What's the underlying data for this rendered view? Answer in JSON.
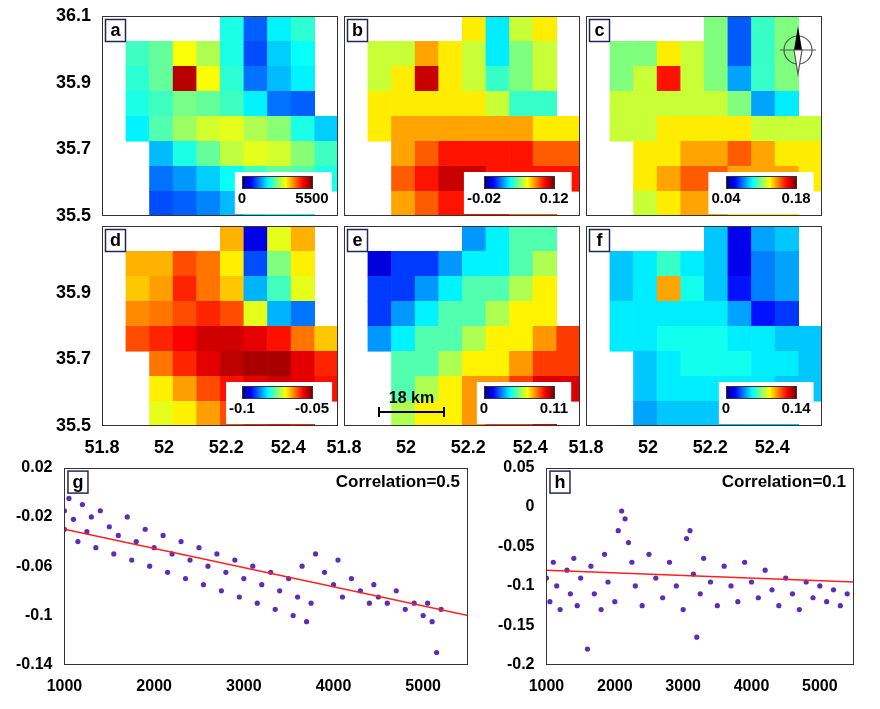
{
  "chart_data": [
    {
      "type": "heatmap",
      "panel": "a",
      "x": [
        51.838,
        51.914,
        51.99,
        52.066,
        52.142,
        52.218,
        52.294,
        52.37,
        52.446,
        52.522
      ],
      "y": [
        36.0625,
        35.9875,
        35.9125,
        35.8375,
        35.7625,
        35.6875,
        35.6125,
        35.5375
      ],
      "cells": [
        [
          null,
          null,
          null,
          null,
          null,
          2200,
          1200,
          2000,
          2300,
          null
        ],
        [
          null,
          2400,
          2600,
          3400,
          3000,
          2200,
          1100,
          1800,
          2100,
          null
        ],
        [
          null,
          2300,
          2600,
          5200,
          3400,
          2300,
          1300,
          1700,
          2000,
          null
        ],
        [
          null,
          2200,
          2400,
          2700,
          2600,
          2400,
          2000,
          1300,
          1200,
          null
        ],
        [
          null,
          2000,
          2500,
          2900,
          3200,
          3300,
          3000,
          2800,
          2200,
          1800
        ],
        [
          null,
          null,
          1700,
          2200,
          2600,
          3100,
          3300,
          3200,
          2800,
          2400
        ],
        [
          null,
          null,
          1300,
          1500,
          1800,
          2100,
          2400,
          2600,
          2500,
          2200
        ],
        [
          null,
          null,
          1100,
          1200,
          1400,
          1700,
          2000,
          2200,
          2100,
          null
        ]
      ],
      "xlim": [
        51.8,
        52.56
      ],
      "ylim": [
        35.5,
        36.1
      ],
      "yticks": [
        35.5,
        35.7,
        35.9,
        36.1
      ],
      "tick_labels": "y",
      "colorbar": {
        "range": [
          0,
          5500
        ],
        "ticks": [
          0,
          5500
        ]
      }
    },
    {
      "type": "heatmap",
      "panel": "b",
      "x": [
        51.838,
        51.914,
        51.99,
        52.066,
        52.142,
        52.218,
        52.294,
        52.37,
        52.446,
        52.522
      ],
      "y": [
        36.0625,
        35.9875,
        35.9125,
        35.8375,
        35.7625,
        35.6875,
        35.6125,
        35.5375
      ],
      "cells": [
        [
          null,
          null,
          null,
          null,
          null,
          0.07,
          0.03,
          0.06,
          0.07,
          null
        ],
        [
          null,
          0.06,
          0.06,
          0.08,
          0.07,
          0.06,
          0.03,
          0.05,
          0.06,
          null
        ],
        [
          null,
          0.06,
          0.07,
          0.11,
          0.07,
          0.06,
          0.04,
          0.05,
          0.06,
          null
        ],
        [
          null,
          0.07,
          0.07,
          0.07,
          0.07,
          0.07,
          0.06,
          0.04,
          0.04,
          null
        ],
        [
          null,
          0.07,
          0.08,
          0.08,
          0.08,
          0.08,
          0.08,
          0.08,
          0.07,
          0.07
        ],
        [
          null,
          null,
          0.08,
          0.09,
          0.1,
          0.1,
          0.1,
          0.1,
          0.09,
          0.09
        ],
        [
          null,
          null,
          0.09,
          0.1,
          0.11,
          0.11,
          0.1,
          0.1,
          0.1,
          0.1
        ],
        [
          null,
          null,
          0.08,
          0.09,
          0.1,
          0.1,
          0.1,
          0.09,
          0.09,
          null
        ]
      ],
      "xlim": [
        51.8,
        52.56
      ],
      "ylim": [
        35.5,
        36.1
      ],
      "tick_labels": false,
      "colorbar": {
        "range": [
          -0.02,
          0.12
        ],
        "ticks": [
          -0.02,
          0.12
        ]
      }
    },
    {
      "type": "heatmap",
      "panel": "c",
      "x": [
        51.838,
        51.914,
        51.99,
        52.066,
        52.142,
        52.218,
        52.294,
        52.37,
        52.446,
        52.522
      ],
      "y": [
        36.0625,
        35.9875,
        35.9125,
        35.8375,
        35.7625,
        35.6875,
        35.6125,
        35.5375
      ],
      "cells": [
        [
          null,
          null,
          null,
          null,
          null,
          0.11,
          0.07,
          0.1,
          0.11,
          null
        ],
        [
          null,
          0.11,
          0.11,
          0.13,
          0.12,
          0.11,
          0.07,
          0.1,
          0.11,
          null
        ],
        [
          null,
          0.11,
          0.12,
          0.16,
          0.12,
          0.11,
          0.08,
          0.1,
          0.11,
          null
        ],
        [
          null,
          0.12,
          0.12,
          0.12,
          0.12,
          0.12,
          0.11,
          0.08,
          0.09,
          null
        ],
        [
          null,
          0.12,
          0.12,
          0.13,
          0.13,
          0.13,
          0.13,
          0.12,
          0.12,
          0.12
        ],
        [
          null,
          null,
          0.13,
          0.13,
          0.14,
          0.14,
          0.15,
          0.14,
          0.13,
          0.13
        ],
        [
          null,
          null,
          0.13,
          0.14,
          0.15,
          0.15,
          0.14,
          0.14,
          0.14,
          0.13
        ],
        [
          null,
          null,
          0.12,
          0.13,
          0.14,
          0.14,
          0.13,
          0.13,
          0.13,
          null
        ]
      ],
      "xlim": [
        51.8,
        52.56
      ],
      "ylim": [
        35.5,
        36.1
      ],
      "tick_labels": false,
      "colorbar": {
        "range": [
          0.04,
          0.18
        ],
        "ticks": [
          0.04,
          0.18
        ]
      }
    },
    {
      "type": "heatmap",
      "panel": "d",
      "x": [
        51.838,
        51.914,
        51.99,
        52.066,
        52.142,
        52.218,
        52.294,
        52.37,
        52.446,
        52.522
      ],
      "y": [
        36.0625,
        35.9875,
        35.9125,
        35.8375,
        35.7625,
        35.6875,
        35.6125,
        35.5375
      ],
      "cells": [
        [
          null,
          null,
          null,
          null,
          null,
          -0.065,
          -0.095,
          -0.07,
          -0.065,
          null
        ],
        [
          null,
          -0.065,
          -0.065,
          -0.06,
          -0.062,
          -0.068,
          -0.09,
          -0.075,
          -0.068,
          null
        ],
        [
          null,
          -0.066,
          -0.064,
          -0.058,
          -0.062,
          -0.066,
          -0.085,
          -0.078,
          -0.07,
          null
        ],
        [
          null,
          -0.063,
          -0.062,
          -0.06,
          -0.058,
          -0.06,
          -0.07,
          -0.085,
          -0.088,
          null
        ],
        [
          null,
          -0.06,
          -0.058,
          -0.056,
          -0.054,
          -0.054,
          -0.055,
          -0.057,
          -0.062,
          -0.066
        ],
        [
          null,
          null,
          -0.062,
          -0.058,
          -0.055,
          -0.053,
          -0.052,
          -0.052,
          -0.055,
          -0.058
        ],
        [
          null,
          null,
          -0.068,
          -0.064,
          -0.06,
          -0.057,
          -0.055,
          -0.054,
          -0.055,
          -0.057
        ],
        [
          null,
          null,
          -0.07,
          -0.068,
          -0.064,
          -0.06,
          -0.058,
          -0.057,
          -0.058,
          null
        ]
      ],
      "xlim": [
        51.8,
        52.56
      ],
      "ylim": [
        35.5,
        36.1
      ],
      "xticks": [
        51.8,
        52,
        52.2,
        52.4
      ],
      "yticks": [
        35.5,
        35.7,
        35.9
      ],
      "tick_labels": true,
      "colorbar": {
        "range": [
          -0.1,
          -0.05
        ],
        "ticks": [
          -0.1,
          -0.05
        ]
      }
    },
    {
      "type": "heatmap",
      "panel": "e",
      "x": [
        51.838,
        51.914,
        51.99,
        52.066,
        52.142,
        52.218,
        52.294,
        52.37,
        52.446,
        52.522
      ],
      "y": [
        36.0625,
        35.9875,
        35.9125,
        35.8375,
        35.7625,
        35.6875,
        35.6125,
        35.5375
      ],
      "cells": [
        [
          null,
          null,
          null,
          null,
          null,
          0.03,
          0.04,
          0.05,
          0.05,
          null
        ],
        [
          null,
          0.01,
          0.02,
          0.02,
          0.03,
          0.04,
          0.04,
          0.05,
          0.06,
          null
        ],
        [
          null,
          0.02,
          0.02,
          0.03,
          0.04,
          0.05,
          0.05,
          0.06,
          0.07,
          null
        ],
        [
          null,
          0.02,
          0.03,
          0.04,
          0.05,
          0.05,
          0.06,
          0.07,
          0.07,
          null
        ],
        [
          null,
          0.03,
          0.04,
          0.05,
          0.05,
          0.06,
          0.07,
          0.07,
          0.08,
          0.09
        ],
        [
          null,
          null,
          0.05,
          0.05,
          0.06,
          0.07,
          0.07,
          0.08,
          0.09,
          0.09
        ],
        [
          null,
          null,
          0.05,
          0.06,
          0.07,
          0.08,
          0.08,
          0.09,
          0.1,
          0.1
        ],
        [
          null,
          null,
          0.06,
          0.07,
          0.07,
          0.08,
          0.09,
          0.09,
          0.1,
          null
        ]
      ],
      "xlim": [
        51.8,
        52.56
      ],
      "ylim": [
        35.5,
        36.1
      ],
      "xticks": [
        51.8,
        52,
        52.2,
        52.4
      ],
      "tick_labels": "x",
      "annotation": "18 km",
      "colorbar": {
        "range": [
          0,
          0.11
        ],
        "ticks": [
          0,
          0.11
        ]
      }
    },
    {
      "type": "heatmap",
      "panel": "f",
      "x": [
        51.838,
        51.914,
        51.99,
        52.066,
        52.142,
        52.218,
        52.294,
        52.37,
        52.446,
        52.522
      ],
      "y": [
        36.0625,
        35.9875,
        35.9125,
        35.8375,
        35.7625,
        35.6875,
        35.6125,
        35.5375
      ],
      "cells": [
        [
          null,
          null,
          null,
          null,
          null,
          0.045,
          0.015,
          0.04,
          0.045,
          null
        ],
        [
          null,
          0.045,
          0.05,
          0.06,
          0.05,
          0.045,
          0.015,
          0.035,
          0.04,
          null
        ],
        [
          null,
          0.045,
          0.05,
          0.1,
          0.055,
          0.045,
          0.02,
          0.035,
          0.04,
          null
        ],
        [
          null,
          0.05,
          0.05,
          0.05,
          0.05,
          0.05,
          0.04,
          0.02,
          0.025,
          null
        ],
        [
          null,
          0.05,
          0.05,
          0.055,
          0.055,
          0.055,
          0.05,
          0.05,
          0.045,
          0.045
        ],
        [
          null,
          null,
          0.045,
          0.05,
          0.055,
          0.055,
          0.055,
          0.05,
          0.05,
          0.045
        ],
        [
          null,
          null,
          0.045,
          0.05,
          0.05,
          0.05,
          0.05,
          0.05,
          0.045,
          0.045
        ],
        [
          null,
          null,
          0.04,
          0.045,
          0.045,
          0.045,
          0.045,
          0.045,
          0.045,
          null
        ]
      ],
      "xlim": [
        51.8,
        52.56
      ],
      "ylim": [
        35.5,
        36.1
      ],
      "xticks": [
        51.8,
        52,
        52.2,
        52.4
      ],
      "tick_labels": "x",
      "colorbar": {
        "range": [
          0,
          0.14
        ],
        "ticks": [
          0,
          0.14
        ]
      }
    },
    {
      "type": "scatter",
      "panel": "g",
      "annotation": "Correlation=0.5",
      "grid": false,
      "xlim": [
        1000,
        5500
      ],
      "ylim": [
        -0.14,
        0.02
      ],
      "xticks": [
        1000,
        2000,
        3000,
        4000,
        5000
      ],
      "yticks": [
        -0.14,
        -0.1,
        -0.06,
        -0.02,
        0.02
      ],
      "series": [
        {
          "type": "scatter",
          "color": "#5b2db8",
          "x": [
            1000,
            1000,
            1050,
            1100,
            1150,
            1200,
            1250,
            1300,
            1350,
            1400,
            1500,
            1550,
            1600,
            1700,
            1750,
            1800,
            1900,
            1950,
            2000,
            2100,
            2150,
            2200,
            2300,
            2350,
            2400,
            2500,
            2550,
            2600,
            2700,
            2750,
            2800,
            2900,
            2950,
            3000,
            3100,
            3150,
            3200,
            3300,
            3350,
            3400,
            3500,
            3550,
            3600,
            3650,
            3700,
            3750,
            3800,
            3900,
            4000,
            4050,
            4100,
            4200,
            4300,
            4400,
            4450,
            4500,
            4600,
            4700,
            4800,
            4900,
            5000,
            5050,
            5100,
            5150,
            5200
          ],
          "values": [
            -0.015,
            -0.03,
            -0.005,
            -0.022,
            -0.04,
            -0.01,
            -0.032,
            -0.02,
            -0.045,
            -0.015,
            -0.028,
            -0.05,
            -0.035,
            -0.02,
            -0.055,
            -0.04,
            -0.03,
            -0.06,
            -0.045,
            -0.035,
            -0.065,
            -0.05,
            -0.04,
            -0.07,
            -0.055,
            -0.045,
            -0.075,
            -0.06,
            -0.05,
            -0.08,
            -0.065,
            -0.055,
            -0.085,
            -0.07,
            -0.06,
            -0.09,
            -0.075,
            -0.065,
            -0.095,
            -0.08,
            -0.07,
            -0.1,
            -0.085,
            -0.06,
            -0.105,
            -0.09,
            -0.05,
            -0.065,
            -0.075,
            -0.055,
            -0.085,
            -0.07,
            -0.08,
            -0.09,
            -0.075,
            -0.085,
            -0.09,
            -0.08,
            -0.095,
            -0.09,
            -0.1,
            -0.09,
            -0.105,
            -0.13,
            -0.095
          ]
        },
        {
          "type": "line",
          "color": "#ff2020",
          "x": [
            1000,
            5500
          ],
          "values": [
            -0.03,
            -0.1
          ]
        }
      ]
    },
    {
      "type": "scatter",
      "panel": "h",
      "annotation": "Correlation=0.1",
      "grid": false,
      "xlim": [
        1000,
        5500
      ],
      "ylim": [
        -0.2,
        0.05
      ],
      "xticks": [
        1000,
        2000,
        3000,
        4000,
        5000
      ],
      "yticks": [
        -0.2,
        -0.15,
        -0.1,
        -0.05,
        0,
        0.05
      ],
      "series": [
        {
          "type": "scatter",
          "color": "#5b2db8",
          "x": [
            1000,
            1050,
            1100,
            1150,
            1200,
            1300,
            1350,
            1400,
            1450,
            1500,
            1600,
            1650,
            1700,
            1800,
            1850,
            1900,
            2000,
            2050,
            2100,
            2150,
            2200,
            2250,
            2300,
            2400,
            2500,
            2600,
            2700,
            2800,
            2900,
            3000,
            3050,
            3100,
            3150,
            3200,
            3250,
            3300,
            3400,
            3500,
            3600,
            3700,
            3800,
            3900,
            4000,
            4100,
            4200,
            4300,
            4400,
            4500,
            4600,
            4700,
            4800,
            4900,
            5000,
            5100,
            5200,
            5300,
            5400
          ],
          "values": [
            -0.09,
            -0.12,
            -0.07,
            -0.1,
            -0.13,
            -0.08,
            -0.11,
            -0.065,
            -0.125,
            -0.09,
            -0.18,
            -0.075,
            -0.11,
            -0.13,
            -0.06,
            -0.095,
            -0.12,
            -0.03,
            -0.005,
            -0.015,
            -0.045,
            -0.07,
            -0.1,
            -0.125,
            -0.06,
            -0.09,
            -0.115,
            -0.07,
            -0.1,
            -0.13,
            -0.04,
            -0.03,
            -0.085,
            -0.165,
            -0.11,
            -0.065,
            -0.095,
            -0.125,
            -0.075,
            -0.1,
            -0.12,
            -0.07,
            -0.095,
            -0.115,
            -0.08,
            -0.105,
            -0.125,
            -0.09,
            -0.11,
            -0.13,
            -0.095,
            -0.115,
            -0.1,
            -0.12,
            -0.105,
            -0.125,
            -0.11
          ]
        },
        {
          "type": "line",
          "color": "#ff2020",
          "x": [
            1000,
            5500
          ],
          "values": [
            -0.08,
            -0.095
          ]
        }
      ]
    }
  ]
}
